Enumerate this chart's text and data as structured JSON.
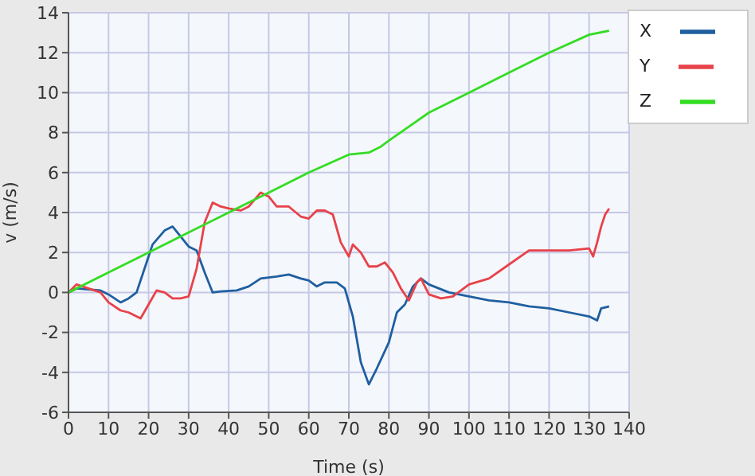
{
  "chart_data": {
    "type": "line",
    "xlabel": "Time (s)",
    "ylabel": "v (m/s)",
    "xlim": [
      0,
      140
    ],
    "xticks": [
      0,
      10,
      20,
      30,
      40,
      50,
      60,
      70,
      80,
      90,
      100,
      110,
      120,
      130,
      140
    ],
    "ylim": [
      -6,
      14
    ],
    "yticks": [
      -6,
      -4,
      -2,
      0,
      2,
      4,
      6,
      8,
      10,
      12,
      14
    ],
    "grid": true,
    "legend": "top right",
    "marker": "none",
    "line_style": "solid",
    "series": [
      {
        "name": "X",
        "color": "#1f5fa0",
        "x": [
          0,
          2,
          5,
          8,
          10,
          13,
          15,
          17,
          19,
          21,
          24,
          26,
          28,
          30,
          32,
          34,
          36,
          38,
          42,
          45,
          48,
          52,
          55,
          58,
          60,
          62,
          64,
          67,
          69,
          71,
          73,
          75,
          77,
          80,
          82,
          84,
          86,
          88,
          90,
          95,
          100,
          105,
          110,
          115,
          120,
          125,
          130,
          132,
          133,
          135
        ],
        "values": [
          0,
          0.2,
          0.15,
          0.1,
          -0.1,
          -0.5,
          -0.3,
          0,
          1.2,
          2.4,
          3.1,
          3.3,
          2.8,
          2.3,
          2.1,
          1,
          0,
          0.05,
          0.1,
          0.3,
          0.7,
          0.8,
          0.9,
          0.7,
          0.6,
          0.3,
          0.5,
          0.5,
          0.2,
          -1.2,
          -3.5,
          -4.6,
          -3.8,
          -2.5,
          -1,
          -0.6,
          0.3,
          0.7,
          0.4,
          0,
          -0.2,
          -0.4,
          -0.5,
          -0.7,
          -0.8,
          -1.0,
          -1.2,
          -1.4,
          -0.8,
          -0.7
        ]
      },
      {
        "name": "Y",
        "color": "#e8424a",
        "x": [
          0,
          2,
          5,
          8,
          10,
          13,
          15,
          18,
          20,
          22,
          24,
          26,
          28,
          30,
          32,
          34,
          36,
          38,
          40,
          43,
          45,
          48,
          50,
          52,
          55,
          58,
          60,
          62,
          64,
          66,
          68,
          70,
          71,
          73,
          75,
          77,
          79,
          81,
          83,
          85,
          87,
          88,
          90,
          93,
          96,
          100,
          105,
          110,
          115,
          120,
          125,
          130,
          131,
          132,
          133,
          134,
          135
        ],
        "values": [
          0,
          0.4,
          0.2,
          0,
          -0.5,
          -0.9,
          -1,
          -1.3,
          -0.6,
          0.1,
          0,
          -0.3,
          -0.3,
          -0.2,
          1.2,
          3.5,
          4.5,
          4.3,
          4.2,
          4.1,
          4.3,
          5.0,
          4.8,
          4.3,
          4.3,
          3.8,
          3.7,
          4.1,
          4.1,
          3.9,
          2.5,
          1.8,
          2.4,
          2.0,
          1.3,
          1.3,
          1.5,
          1.0,
          0.2,
          -0.4,
          0.5,
          0.7,
          -0.1,
          -0.3,
          -0.2,
          0.4,
          0.7,
          1.4,
          2.1,
          2.1,
          2.1,
          2.2,
          1.8,
          2.5,
          3.3,
          3.9,
          4.2
        ]
      },
      {
        "name": "Z",
        "color": "#33dd22",
        "x": [
          0,
          10,
          20,
          30,
          40,
          50,
          60,
          70,
          75,
          78,
          80,
          90,
          100,
          110,
          120,
          130,
          135
        ],
        "values": [
          0,
          1,
          2,
          3,
          4,
          5,
          6,
          6.9,
          7.0,
          7.3,
          7.6,
          9.0,
          10.0,
          11.0,
          12.0,
          12.9,
          13.1
        ]
      }
    ]
  }
}
